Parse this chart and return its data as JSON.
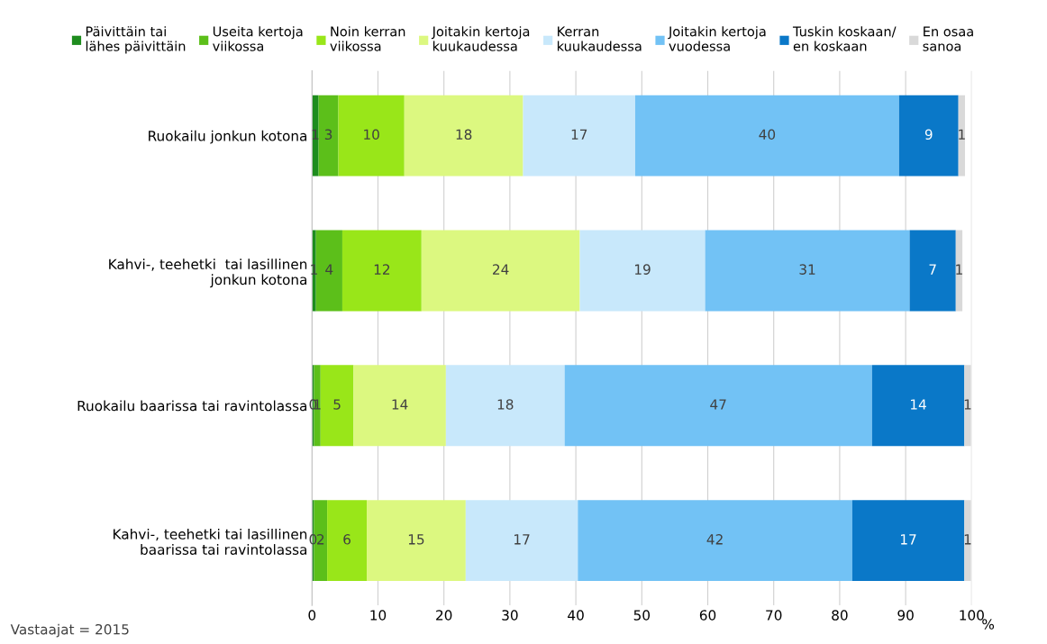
{
  "chart_data": {
    "type": "bar",
    "orientation": "horizontal",
    "stacked": true,
    "categories": [
      "Ruokailu jonkun kotona",
      "Kahvi-, teehetki  tai lasillinen\njonkun kotona",
      "Ruokailu baarissa tai ravintolassa",
      "Kahvi-, teehetki tai lasillinen\nbaarissa tai ravintolassa"
    ],
    "series": [
      {
        "name": "Päivittäin tai\nlähes päivittäin",
        "color": "#1e8c1e",
        "values": [
          1,
          0.6,
          0.3,
          0.3
        ],
        "value_labels": [
          "1",
          "1",
          "0",
          "0"
        ]
      },
      {
        "name": "Useita kertoja\nviikossa",
        "color": "#5cbf1a",
        "values": [
          3,
          4,
          1,
          2
        ],
        "value_labels": [
          "3",
          "4",
          "1",
          "2"
        ]
      },
      {
        "name": "Noin kerran\nviikossa",
        "color": "#99e619",
        "values": [
          10,
          12,
          5,
          6
        ],
        "value_labels": [
          "10",
          "12",
          "5",
          "6"
        ]
      },
      {
        "name": "Joitakin kertoja\nkuukaudessa",
        "color": "#dcf880",
        "values": [
          18,
          24,
          14,
          15
        ],
        "value_labels": [
          "18",
          "24",
          "14",
          "15"
        ]
      },
      {
        "name": "Kerran\nkuukaudessa",
        "color": "#c8e8fb",
        "values": [
          17,
          19,
          18,
          17
        ],
        "value_labels": [
          "17",
          "19",
          "18",
          "17"
        ]
      },
      {
        "name": "Joitakin kertoja\nvuodessa",
        "color": "#72c2f5",
        "values": [
          40,
          31,
          46.6,
          41.6
        ],
        "value_labels": [
          "40",
          "31",
          "47",
          "42"
        ]
      },
      {
        "name": "Tuskin koskaan/\nen koskaan",
        "color": "#0a78c8",
        "values": [
          9,
          7,
          14,
          17
        ],
        "value_labels": [
          "9",
          "7",
          "14",
          "17"
        ]
      },
      {
        "name": "En osaa\nsanoa",
        "color": "#d9d9d9",
        "values": [
          1,
          1,
          1,
          1
        ],
        "value_labels": [
          "1",
          "1",
          "1",
          "1"
        ]
      }
    ],
    "xlim": [
      0,
      100
    ],
    "xticks": [
      0,
      10,
      20,
      30,
      40,
      50,
      60,
      70,
      80,
      90,
      100
    ],
    "xlabel": "%",
    "grid": "x",
    "legend": "top",
    "annotations": [
      "Vastaajat = 2015"
    ]
  }
}
